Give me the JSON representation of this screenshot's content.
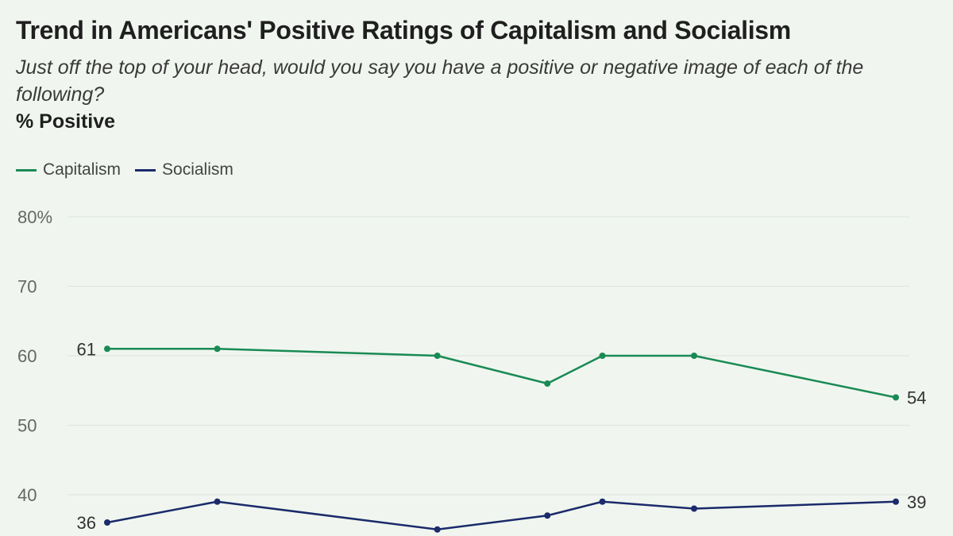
{
  "title": "Trend in Americans' Positive Ratings of Capitalism and Socialism",
  "subtitle": "Just off the top of your head, would you say you have a positive or negative image of each of the following?",
  "units_label": "% Positive",
  "colors": {
    "capitalism": "#1a8a55",
    "socialism": "#1b2a6b",
    "grid": "#dde3dd"
  },
  "chart_data": {
    "type": "line",
    "title": "Trend in Americans' Positive Ratings of Capitalism and Socialism",
    "ylabel": "% Positive",
    "ylim": [
      30,
      80
    ],
    "yticks": [
      40,
      50,
      60,
      70,
      80
    ],
    "ytick_labels": [
      "40",
      "50",
      "60",
      "70",
      "80%"
    ],
    "x": [
      0,
      3,
      9,
      12,
      13.5,
      16,
      21.5
    ],
    "series": [
      {
        "name": "Capitalism",
        "values": [
          61,
          61,
          60,
          56,
          60,
          60,
          54
        ],
        "labels": [
          {
            "index": 0,
            "text": "61",
            "side": "left"
          },
          {
            "index": 6,
            "text": "54",
            "side": "right"
          }
        ]
      },
      {
        "name": "Socialism",
        "values": [
          36,
          39,
          35,
          37,
          39,
          38,
          39
        ],
        "labels": [
          {
            "index": 0,
            "text": "36",
            "side": "left"
          },
          {
            "index": 6,
            "text": "39",
            "side": "right"
          }
        ]
      }
    ]
  }
}
